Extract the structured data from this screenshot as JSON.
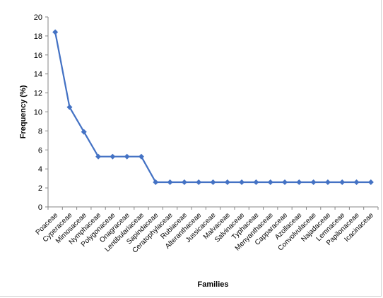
{
  "chart_data": {
    "type": "line",
    "title": "",
    "xlabel": "Families",
    "ylabel": "Frequency (%)",
    "ylim": [
      0,
      20
    ],
    "yticks": [
      0,
      2,
      4,
      6,
      8,
      10,
      12,
      14,
      16,
      18,
      20
    ],
    "grid": false,
    "legend": "none",
    "line_color": "#4472C4",
    "categories": [
      "Poaceae",
      "Cyperaceae",
      "Mimosaceae",
      "Nymphaceae",
      "Polygonaceae",
      "Onagraceae",
      "Lentibulariaceae",
      "Sapindaceae",
      "Ceratophylaceae",
      "Rubiaceae",
      "Alteranthaceae",
      "Jussicaceae",
      "Malvaceae",
      "Salvinaceae",
      "Typhaceae",
      "Menyanthaceae",
      "Capparaceae",
      "Azollaceae",
      "Convolvulaceae",
      "Najadaceae",
      "Lemnaceae",
      "Papilonaceae",
      "Icacinaceae"
    ],
    "series": [
      {
        "values": [
          18.4,
          10.5,
          7.9,
          5.3,
          5.3,
          5.3,
          5.3,
          2.6,
          2.6,
          2.6,
          2.6,
          2.6,
          2.6,
          2.6,
          2.6,
          2.6,
          2.6,
          2.6,
          2.6,
          2.6,
          2.6,
          2.6,
          2.6
        ]
      }
    ]
  }
}
